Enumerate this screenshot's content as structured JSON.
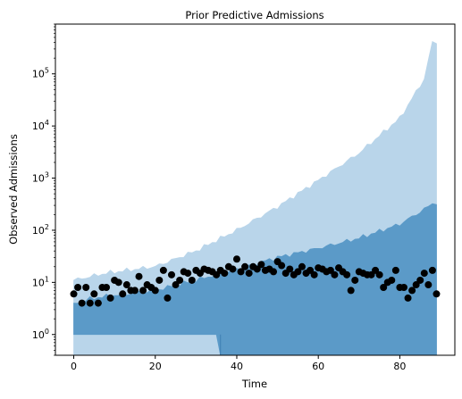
{
  "chart_data": {
    "type": "area",
    "title": "Prior Predictive Admissions",
    "xlabel": "Time",
    "ylabel": "Observed Admissions",
    "xlim": [
      -4.5,
      93.5
    ],
    "ylim": [
      0.4,
      900000
    ],
    "yscale": "log",
    "x_ticks": [
      0,
      20,
      40,
      60,
      80
    ],
    "y_ticks": [
      {
        "value": 1,
        "base": "10",
        "exp": "0"
      },
      {
        "value": 10,
        "base": "10",
        "exp": "1"
      },
      {
        "value": 100,
        "base": "10",
        "exp": "2"
      },
      {
        "value": 1000,
        "base": "10",
        "exp": "3"
      },
      {
        "value": 10000,
        "base": "10",
        "exp": "4"
      },
      {
        "value": 100000,
        "base": "10",
        "exp": "5"
      }
    ],
    "grid": false,
    "series": [
      {
        "kind": "outer-band",
        "color": "#b9d5ea",
        "x": [
          0,
          89
        ],
        "lower": [
          0.4,
          0.4
        ],
        "upper_anchors": [
          [
            0,
            11
          ],
          [
            8,
            15
          ],
          [
            20,
            20
          ],
          [
            30,
            40
          ],
          [
            40,
            100
          ],
          [
            50,
            280
          ],
          [
            60,
            900
          ],
          [
            70,
            3000
          ],
          [
            80,
            14000
          ],
          [
            86,
            80000
          ],
          [
            88,
            400000
          ],
          [
            89,
            380000
          ]
        ]
      },
      {
        "kind": "inner-band",
        "color": "#5b9ac8",
        "x": [
          0,
          89
        ],
        "lower_anchors": [
          [
            0,
            1
          ],
          [
            35,
            1
          ],
          [
            36,
            0.4
          ],
          [
            89,
            0.4
          ]
        ],
        "upper_anchors": [
          [
            0,
            4
          ],
          [
            5,
            5
          ],
          [
            20,
            7
          ],
          [
            30,
            11
          ],
          [
            40,
            18
          ],
          [
            50,
            30
          ],
          [
            60,
            45
          ],
          [
            70,
            70
          ],
          [
            80,
            130
          ],
          [
            86,
            250
          ],
          [
            88,
            330
          ],
          [
            89,
            310
          ]
        ]
      },
      {
        "kind": "observed",
        "color": "#000000",
        "x": [
          0,
          1,
          2,
          3,
          4,
          5,
          6,
          7,
          8,
          9,
          10,
          11,
          12,
          13,
          14,
          15,
          16,
          17,
          18,
          19,
          20,
          21,
          22,
          23,
          24,
          25,
          26,
          27,
          28,
          29,
          30,
          31,
          32,
          33,
          34,
          35,
          36,
          37,
          38,
          39,
          40,
          41,
          42,
          43,
          44,
          45,
          46,
          47,
          48,
          49,
          50,
          51,
          52,
          53,
          54,
          55,
          56,
          57,
          58,
          59,
          60,
          61,
          62,
          63,
          64,
          65,
          66,
          67,
          68,
          69,
          70,
          71,
          72,
          73,
          74,
          75,
          76,
          77,
          78,
          79,
          80,
          81,
          82,
          83,
          84,
          85,
          86,
          87,
          88,
          89
        ],
        "y": [
          6,
          8,
          4,
          8,
          4,
          6,
          4,
          8,
          8,
          5,
          11,
          10,
          6,
          9,
          7,
          7,
          13,
          7,
          9,
          8,
          7,
          11,
          17,
          5,
          14,
          9,
          11,
          16,
          15,
          11,
          17,
          15,
          18,
          17,
          16,
          14,
          17,
          15,
          20,
          18,
          28,
          16,
          20,
          15,
          20,
          18,
          22,
          17,
          18,
          16,
          25,
          21,
          15,
          18,
          14,
          16,
          20,
          15,
          17,
          14,
          19,
          18,
          16,
          17,
          14,
          19,
          16,
          14,
          7,
          11,
          16,
          15,
          14,
          14,
          17,
          14,
          8,
          10,
          11,
          17,
          8,
          8,
          5,
          7,
          9,
          11,
          15,
          9,
          17,
          6
        ]
      }
    ]
  }
}
